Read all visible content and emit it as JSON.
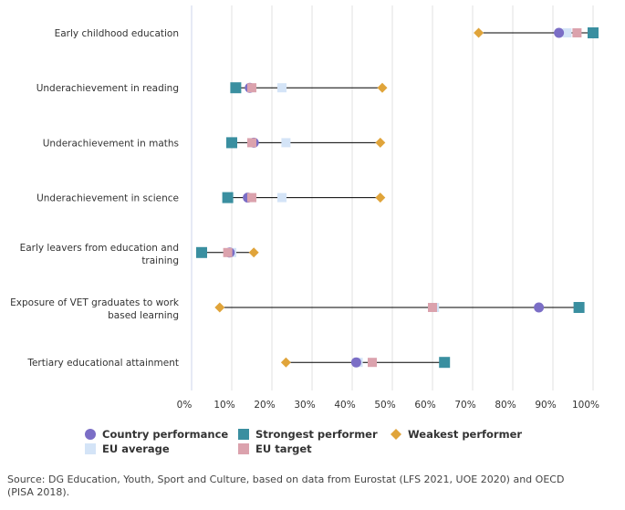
{
  "chart_data": {
    "type": "dumbbell",
    "title": "",
    "xlabel": "",
    "ylabel": "",
    "xlim": [
      0,
      100
    ],
    "x_ticks": [
      "0%",
      "10%",
      "20%",
      "30%",
      "40%",
      "50%",
      "60%",
      "70%",
      "80%",
      "90%",
      "100%"
    ],
    "categories": [
      "Early childhood education",
      "Underachievement in reading",
      "Underachievement in maths",
      "Underachievement in science",
      [
        "Early leavers from education and",
        "training"
      ],
      [
        "Exposure of VET graduates to work",
        "based learning"
      ],
      "Tertiary educational attainment"
    ],
    "series": [
      {
        "name": "Country performance",
        "key": "country",
        "color": "#7b6ec6",
        "shape": "circle",
        "values": [
          91.5,
          14.5,
          15.5,
          14,
          9.5,
          86.5,
          41
        ]
      },
      {
        "name": "EU average",
        "key": "eu_avg",
        "color": "#d4e4f7",
        "shape": "square",
        "values": [
          93.5,
          22.5,
          23.5,
          22.5,
          10,
          60.5,
          41.5
        ]
      },
      {
        "name": "EU target",
        "key": "eu_target",
        "color": "#dba2ad",
        "shape": "square",
        "values": [
          96,
          15,
          15,
          15,
          9,
          60,
          45
        ]
      },
      {
        "name": "Strongest performer",
        "key": "strongest",
        "color": "#3a8fa0",
        "shape": "square",
        "values": [
          100,
          11,
          10,
          9,
          2.5,
          96.5,
          63
        ]
      },
      {
        "name": "Weakest performer",
        "key": "weakest",
        "color": "#e0a43a",
        "shape": "diamond",
        "values": [
          71.5,
          47.5,
          47,
          47,
          15.5,
          7,
          23.5
        ]
      }
    ],
    "legend": {
      "row1": [
        "Country performance",
        "Strongest performer",
        "Weakest performer"
      ],
      "row2": [
        "EU average",
        "EU target"
      ]
    }
  },
  "colors": {
    "country": "#7b6ec6",
    "eu_avg": "#d4e4f7",
    "eu_target": "#dba2ad",
    "strongest": "#3a8fa0",
    "weakest": "#e0a43a",
    "grid": "#e0e0e0",
    "axis": "#ccd6eb",
    "range_line": "#000000"
  },
  "source": {
    "line1": "Source: DG Education, Youth, Sport and Culture, based on data from Eurostat (LFS 2021, UOE 2020) and OECD",
    "line2": "(PISA 2018)."
  }
}
